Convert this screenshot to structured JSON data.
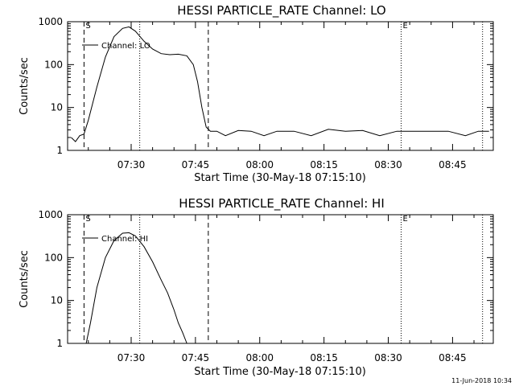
{
  "chart_data": [
    {
      "type": "line",
      "title": "HESSI PARTICLE_RATE Channel: LO",
      "xlabel": "Start Time (30-May-18 07:15:10)",
      "ylabel": "Counts/sec",
      "yscale": "log",
      "ylim": [
        1,
        1000
      ],
      "xlim": [
        "07:15:10",
        "08:54:30"
      ],
      "x_ticks": [
        "07:30",
        "07:45",
        "08:00",
        "08:15",
        "08:30",
        "08:45"
      ],
      "y_ticks": [
        "1",
        "10",
        "100",
        "1000"
      ],
      "markers": [
        {
          "time": "07:19:00",
          "style": "dashed",
          "label": "S"
        },
        {
          "time": "07:32:00",
          "style": "dotted",
          "label": ""
        },
        {
          "time": "07:48:00",
          "style": "dashed",
          "label": ""
        },
        {
          "time": "08:33:00",
          "style": "dotted",
          "label": "E"
        },
        {
          "time": "08:52:00",
          "style": "dotted",
          "label": ""
        }
      ],
      "legend": {
        "label": "Channel: LO",
        "position": "top-left"
      },
      "series": [
        {
          "name": "Channel: LO",
          "x": [
            "07:16:00",
            "07:17:00",
            "07:18:00",
            "07:19:00",
            "07:20:00",
            "07:22:00",
            "07:24:00",
            "07:26:00",
            "07:28:00",
            "07:29:30",
            "07:31:00",
            "07:33:00",
            "07:35:00",
            "07:37:00",
            "07:39:00",
            "07:41:00",
            "07:43:00",
            "07:44:30",
            "07:45:30",
            "07:46:30",
            "07:47:30",
            "07:48:30",
            "07:50:00",
            "07:52:00",
            "07:55:00",
            "07:58:00",
            "08:01:00",
            "08:04:00",
            "08:08:00",
            "08:12:00",
            "08:16:00",
            "08:20:00",
            "08:24:00",
            "08:28:00",
            "08:32:00",
            "08:36:00",
            "08:40:00",
            "08:44:00",
            "08:48:00",
            "08:51:00",
            "08:53:30"
          ],
          "y": [
            2,
            1.6,
            2.2,
            2.4,
            5,
            30,
            150,
            450,
            700,
            760,
            600,
            350,
            230,
            180,
            170,
            175,
            160,
            100,
            40,
            10,
            3.5,
            2.8,
            2.8,
            2.2,
            2.9,
            2.8,
            2.2,
            2.8,
            2.8,
            2.2,
            3.1,
            2.8,
            2.9,
            2.2,
            2.8,
            2.8,
            2.8,
            2.8,
            2.2,
            2.8,
            2.8
          ]
        }
      ]
    },
    {
      "type": "line",
      "title": "HESSI PARTICLE_RATE Channel: HI",
      "xlabel": "Start Time (30-May-18 07:15:10)",
      "ylabel": "Counts/sec",
      "yscale": "log",
      "ylim": [
        1,
        1000
      ],
      "xlim": [
        "07:15:10",
        "08:54:30"
      ],
      "x_ticks": [
        "07:30",
        "07:45",
        "08:00",
        "08:15",
        "08:30",
        "08:45"
      ],
      "y_ticks": [
        "1",
        "10",
        "100",
        "1000"
      ],
      "markers": [
        {
          "time": "07:19:00",
          "style": "dashed",
          "label": "S"
        },
        {
          "time": "07:32:00",
          "style": "dotted",
          "label": ""
        },
        {
          "time": "07:48:00",
          "style": "dashed",
          "label": ""
        },
        {
          "time": "08:33:00",
          "style": "dotted",
          "label": "E"
        },
        {
          "time": "08:52:00",
          "style": "dotted",
          "label": ""
        }
      ],
      "legend": {
        "label": "Channel: HI",
        "position": "top-left"
      },
      "series": [
        {
          "name": "Channel: HI",
          "x": [
            "07:19:30",
            "07:20:30",
            "07:22:00",
            "07:24:00",
            "07:26:00",
            "07:28:00",
            "07:29:30",
            "07:31:00",
            "07:33:00",
            "07:35:00",
            "07:37:00",
            "07:38:30",
            "07:40:00",
            "07:41:00",
            "07:42:00",
            "07:43:00"
          ],
          "y": [
            1,
            3,
            20,
            100,
            250,
            370,
            380,
            320,
            180,
            80,
            30,
            15,
            6,
            3,
            1.8,
            1
          ]
        }
      ]
    }
  ],
  "timestamp": "11-Jun-2018 10:34"
}
